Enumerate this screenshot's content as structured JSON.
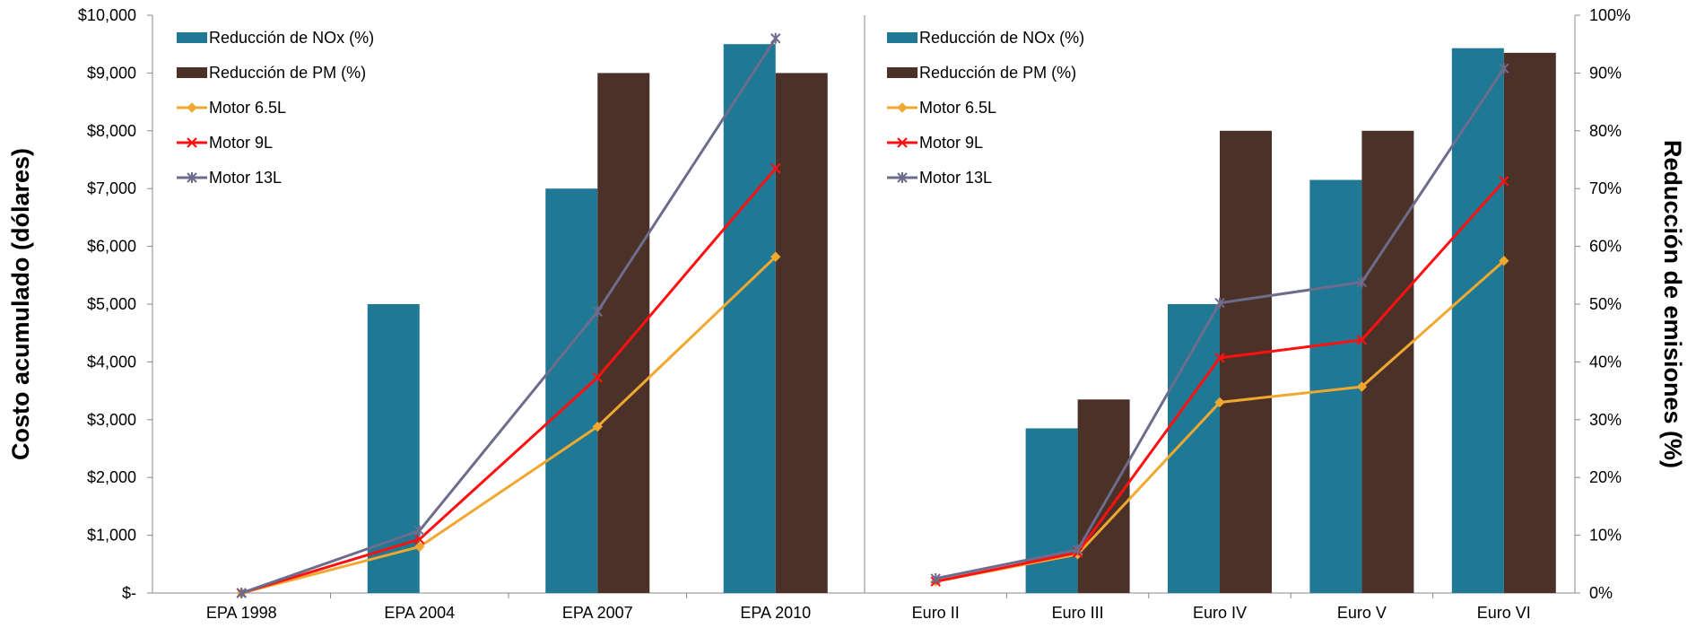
{
  "chart_data": [
    {
      "type": "bar",
      "panel": "left",
      "categories": [
        "EPA 1998",
        "EPA 2004",
        "EPA 2007",
        "EPA 2010"
      ],
      "ylabel": "Costo acumulado (dólares)",
      "ylim": [
        0,
        10000
      ],
      "y_ticks": [
        "$-",
        "$1,000",
        "$2,000",
        "$3,000",
        "$4,000",
        "$5,000",
        "$6,000",
        "$7,000",
        "$8,000",
        "$9,000",
        "$10,000"
      ],
      "y2lim": [
        0,
        100
      ],
      "legend_position": "top-left",
      "series": [
        {
          "name": "Reducción de NOx (%)",
          "type": "bar",
          "axis": "y2",
          "color": "#1f7894",
          "values": [
            0,
            50,
            70,
            95
          ]
        },
        {
          "name": "Reducción de PM (%)",
          "type": "bar",
          "axis": "y2",
          "color": "#4c3128",
          "values": [
            0,
            0,
            90,
            90
          ]
        },
        {
          "name": "Motor 6.5L",
          "type": "line",
          "axis": "y",
          "color": "#f0a830",
          "marker": "diamond",
          "values": [
            0,
            800,
            2880,
            5820
          ]
        },
        {
          "name": "Motor 9L",
          "type": "line",
          "axis": "y",
          "color": "#ff1010",
          "marker": "x",
          "values": [
            0,
            930,
            3730,
            7350
          ]
        },
        {
          "name": "Motor 13L",
          "type": "line",
          "axis": "y",
          "color": "#6c6c8c",
          "marker": "star",
          "values": [
            0,
            1080,
            4870,
            9600
          ]
        }
      ]
    },
    {
      "type": "bar",
      "panel": "right",
      "categories": [
        "Euro II",
        "Euro III",
        "Euro IV",
        "Euro V",
        "Euro VI"
      ],
      "ylabel": "Reducción de emisiones (%)",
      "ylim": [
        0,
        100
      ],
      "y_ticks": [
        "0%",
        "10%",
        "20%",
        "30%",
        "40%",
        "50%",
        "60%",
        "70%",
        "80%",
        "90%",
        "100%"
      ],
      "legend_position": "top-left",
      "series": [
        {
          "name": "Reducción de NOx (%)",
          "type": "bar",
          "color": "#1f7894",
          "values": [
            0,
            28.5,
            50,
            71.5,
            94.3
          ]
        },
        {
          "name": "Reducción de PM (%)",
          "type": "bar",
          "color": "#4c3128",
          "values": [
            0,
            33.5,
            80,
            80,
            93.5
          ]
        },
        {
          "name": "Motor 6.5L",
          "type": "line",
          "color": "#f0a830",
          "marker": "diamond",
          "values": [
            2,
            6.7,
            33,
            35.7,
            57.5
          ]
        },
        {
          "name": "Motor 9L",
          "type": "line",
          "color": "#ff1010",
          "marker": "x",
          "values": [
            2,
            7,
            40.7,
            43.8,
            71.3
          ]
        },
        {
          "name": "Motor 13L",
          "type": "line",
          "color": "#6c6c8c",
          "marker": "star",
          "values": [
            2.5,
            7.5,
            50.2,
            53.8,
            90.8
          ]
        }
      ]
    }
  ]
}
